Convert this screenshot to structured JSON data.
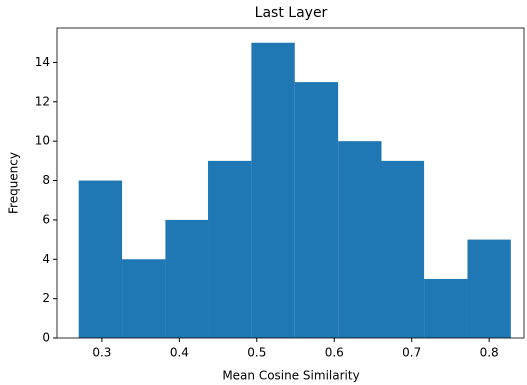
{
  "chart_data": {
    "type": "histogram",
    "title": "Last Layer",
    "x_label": "Mean Cosine Similarity",
    "y_label": "Frequency",
    "bins": [
      0.27,
      0.326,
      0.382,
      0.437,
      0.493,
      0.549,
      0.605,
      0.661,
      0.716,
      0.772,
      0.828
    ],
    "values": [
      8,
      4,
      6,
      9,
      15,
      13,
      10,
      9,
      3,
      5
    ],
    "color": "#1f77b4",
    "xlim": [
      0.242,
      0.845
    ],
    "xticks": [
      0.3,
      0.4,
      0.5,
      0.6,
      0.7,
      0.8
    ],
    "ylim": [
      0,
      15.75
    ],
    "yticks": [
      0,
      2,
      4,
      6,
      8,
      10,
      12,
      14
    ],
    "grid": false
  }
}
